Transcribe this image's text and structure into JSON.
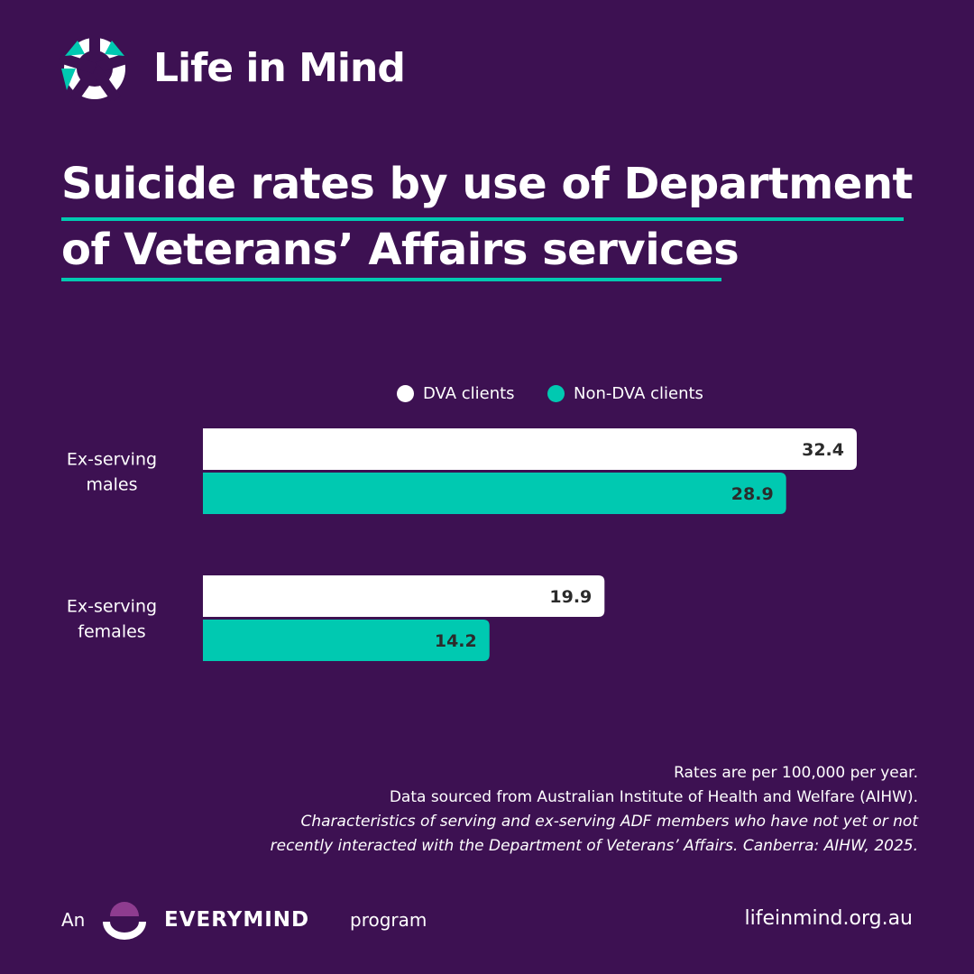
{
  "brand": {
    "name": "Life in Mind",
    "accent_color": "#00c9b1",
    "background_color": "#3d1152"
  },
  "title": {
    "line1": "Suicide rates by use of Department",
    "line2": "of Veterans’ Affairs services"
  },
  "chart_data": {
    "type": "bar",
    "orientation": "horizontal",
    "categories": [
      "Ex-serving males",
      "Ex-serving females"
    ],
    "category_lines": [
      [
        "Ex-serving",
        "males"
      ],
      [
        "Ex-serving",
        "females"
      ]
    ],
    "series": [
      {
        "name": "DVA clients",
        "color": "#ffffff",
        "values": [
          32.4,
          19.9
        ],
        "labels": [
          "32.4",
          "19.9"
        ]
      },
      {
        "name": "Non-DVA clients",
        "color": "#00c9b1",
        "values": [
          28.9,
          14.2
        ],
        "labels": [
          "28.9",
          "14.2"
        ]
      }
    ],
    "xlim": [
      0,
      32.4
    ],
    "grid": false,
    "legend_position": "top"
  },
  "notes": {
    "line1": "Rates are per 100,000 per year.",
    "line2": "Data sourced from Australian Institute of Health and Welfare (AIHW).",
    "line3": "Characteristics of serving and ex-serving ADF members who have not yet or not",
    "line4": "recently interacted with the Department of Veterans’ Affairs. Canberra: AIHW, 2025."
  },
  "footer": {
    "prefix": "An",
    "brand": "EVERYMIND",
    "suffix": "program",
    "url": "lifeinmind.org.au",
    "logo_color": "#8e3c8f"
  }
}
